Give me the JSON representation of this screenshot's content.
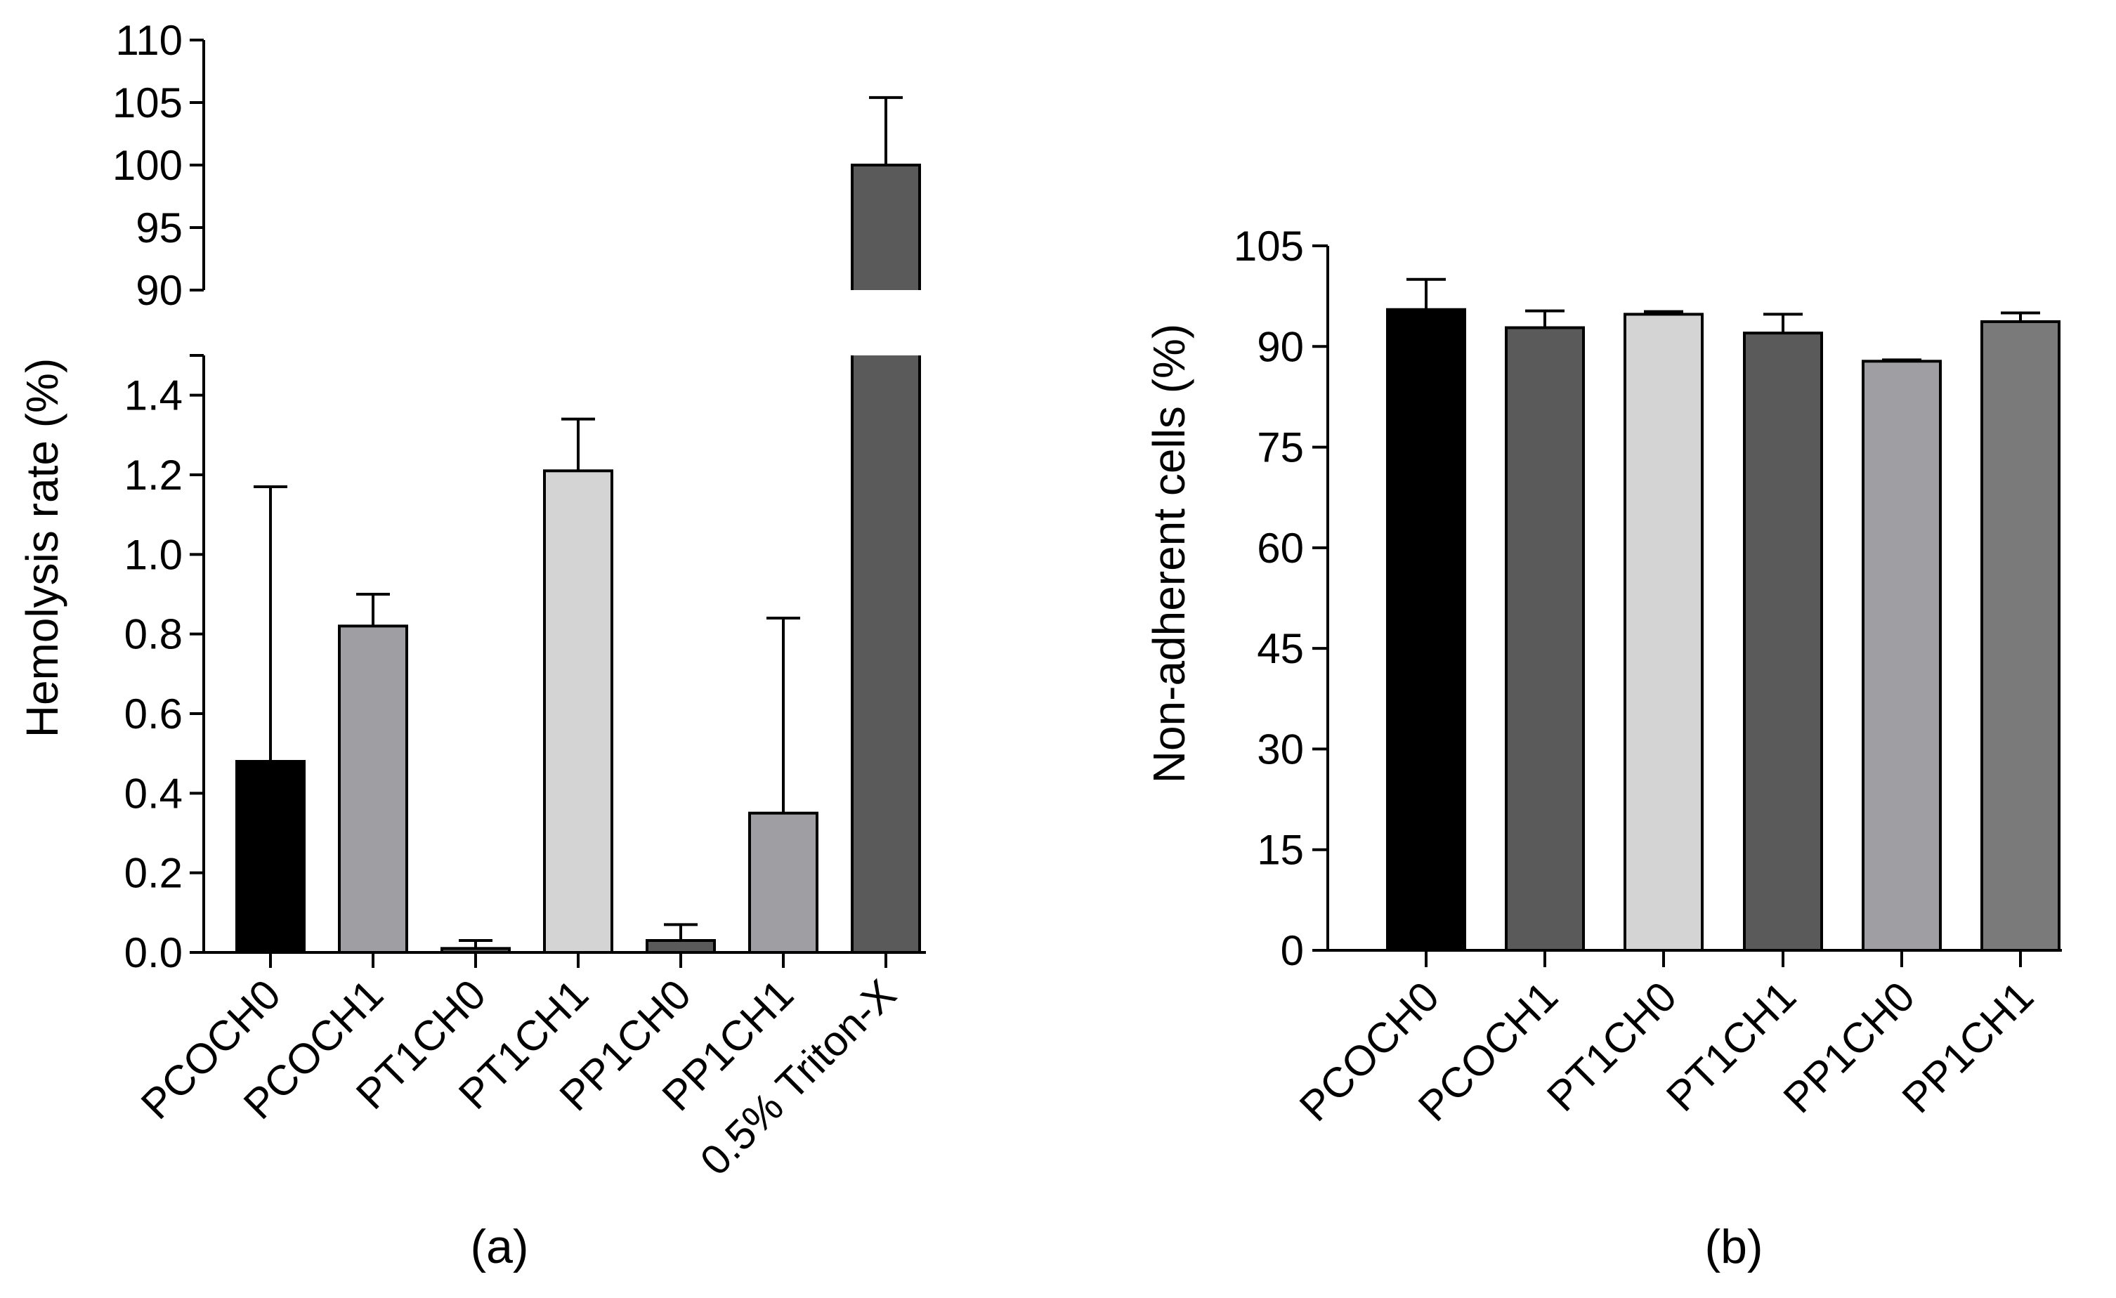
{
  "chart_data": [
    {
      "type": "bar",
      "panel_label": "(a)",
      "ylabel": "Hemolysis rate (%)",
      "axis_break": true,
      "lower_segment": {
        "ylim": [
          0,
          1.5
        ],
        "ticks": [
          "0.0",
          "0.2",
          "0.4",
          "0.6",
          "0.8",
          "1.0",
          "1.2",
          "1.4"
        ]
      },
      "upper_segment": {
        "ylim": [
          90,
          110
        ],
        "ticks": [
          "90",
          "95",
          "100",
          "105",
          "110"
        ]
      },
      "categories": [
        "PCOCH0",
        "PCOCH1",
        "PT1CH0",
        "PT1CH1",
        "PP1CH0",
        "PP1CH1",
        "0.5% Triton-X"
      ],
      "values": [
        0.48,
        0.82,
        0.01,
        1.21,
        0.03,
        0.35,
        100
      ],
      "error_upper": [
        1.17,
        0.9,
        0.03,
        1.34,
        0.07,
        0.84,
        105.4
      ],
      "colors": [
        "#000000",
        "#9e9ea3",
        "#5a5a5a",
        "#d4d4d4",
        "#5a5a5a",
        "#9e9ea3",
        "#5a5a5a"
      ]
    },
    {
      "type": "bar",
      "panel_label": "(b)",
      "ylabel": "Non-adherent cells (%)",
      "ylim": [
        0,
        105
      ],
      "ticks": [
        "0",
        "15",
        "30",
        "45",
        "60",
        "75",
        "90",
        "105"
      ],
      "categories": [
        "PCOCH0",
        "PCOCH1",
        "PT1CH0",
        "PT1CH1",
        "PP1CH0",
        "PP1CH1"
      ],
      "values": [
        95.5,
        92.8,
        94.8,
        92.0,
        87.8,
        93.7
      ],
      "error": [
        4.5,
        2.5,
        0.4,
        2.8,
        0.2,
        1.3
      ],
      "colors": [
        "#000000",
        "#5a5a5a",
        "#d4d4d4",
        "#5a5a5a",
        "#9e9ea3",
        "#7a7a7a"
      ]
    }
  ]
}
